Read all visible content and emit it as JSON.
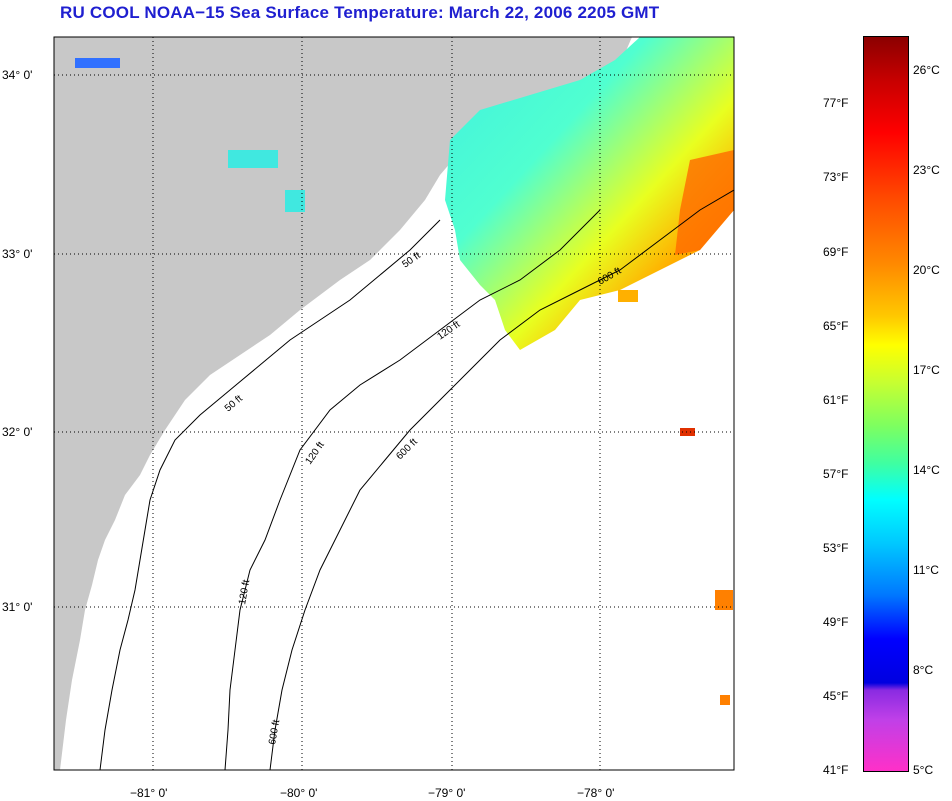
{
  "title": "RU COOL  NOAA−15  Sea Surface Temperature:  March 22, 2006 2205 GMT",
  "latitude_labels": [
    "34° 0'",
    "33° 0'",
    "32° 0'",
    "31° 0'"
  ],
  "longitude_labels": [
    "−81° 0'",
    "−80° 0'",
    "−79° 0'",
    "−78° 0'"
  ],
  "depth_contour_labels": [
    "50 ft",
    "120 ft",
    "600 ft"
  ],
  "colorbar": {
    "fahrenheit_labels": [
      "77°F",
      "73°F",
      "69°F",
      "65°F",
      "61°F",
      "57°F",
      "53°F",
      "49°F",
      "45°F",
      "41°F"
    ],
    "celsius_labels": [
      "26°C",
      "23°C",
      "20°C",
      "17°C",
      "14°C",
      "11°C",
      "8°C",
      "5°C"
    ]
  },
  "colors": {
    "title": "#1f1fd0",
    "land": "#c8c8c8",
    "ocean": "#ffffff",
    "contour": "#000000"
  }
}
